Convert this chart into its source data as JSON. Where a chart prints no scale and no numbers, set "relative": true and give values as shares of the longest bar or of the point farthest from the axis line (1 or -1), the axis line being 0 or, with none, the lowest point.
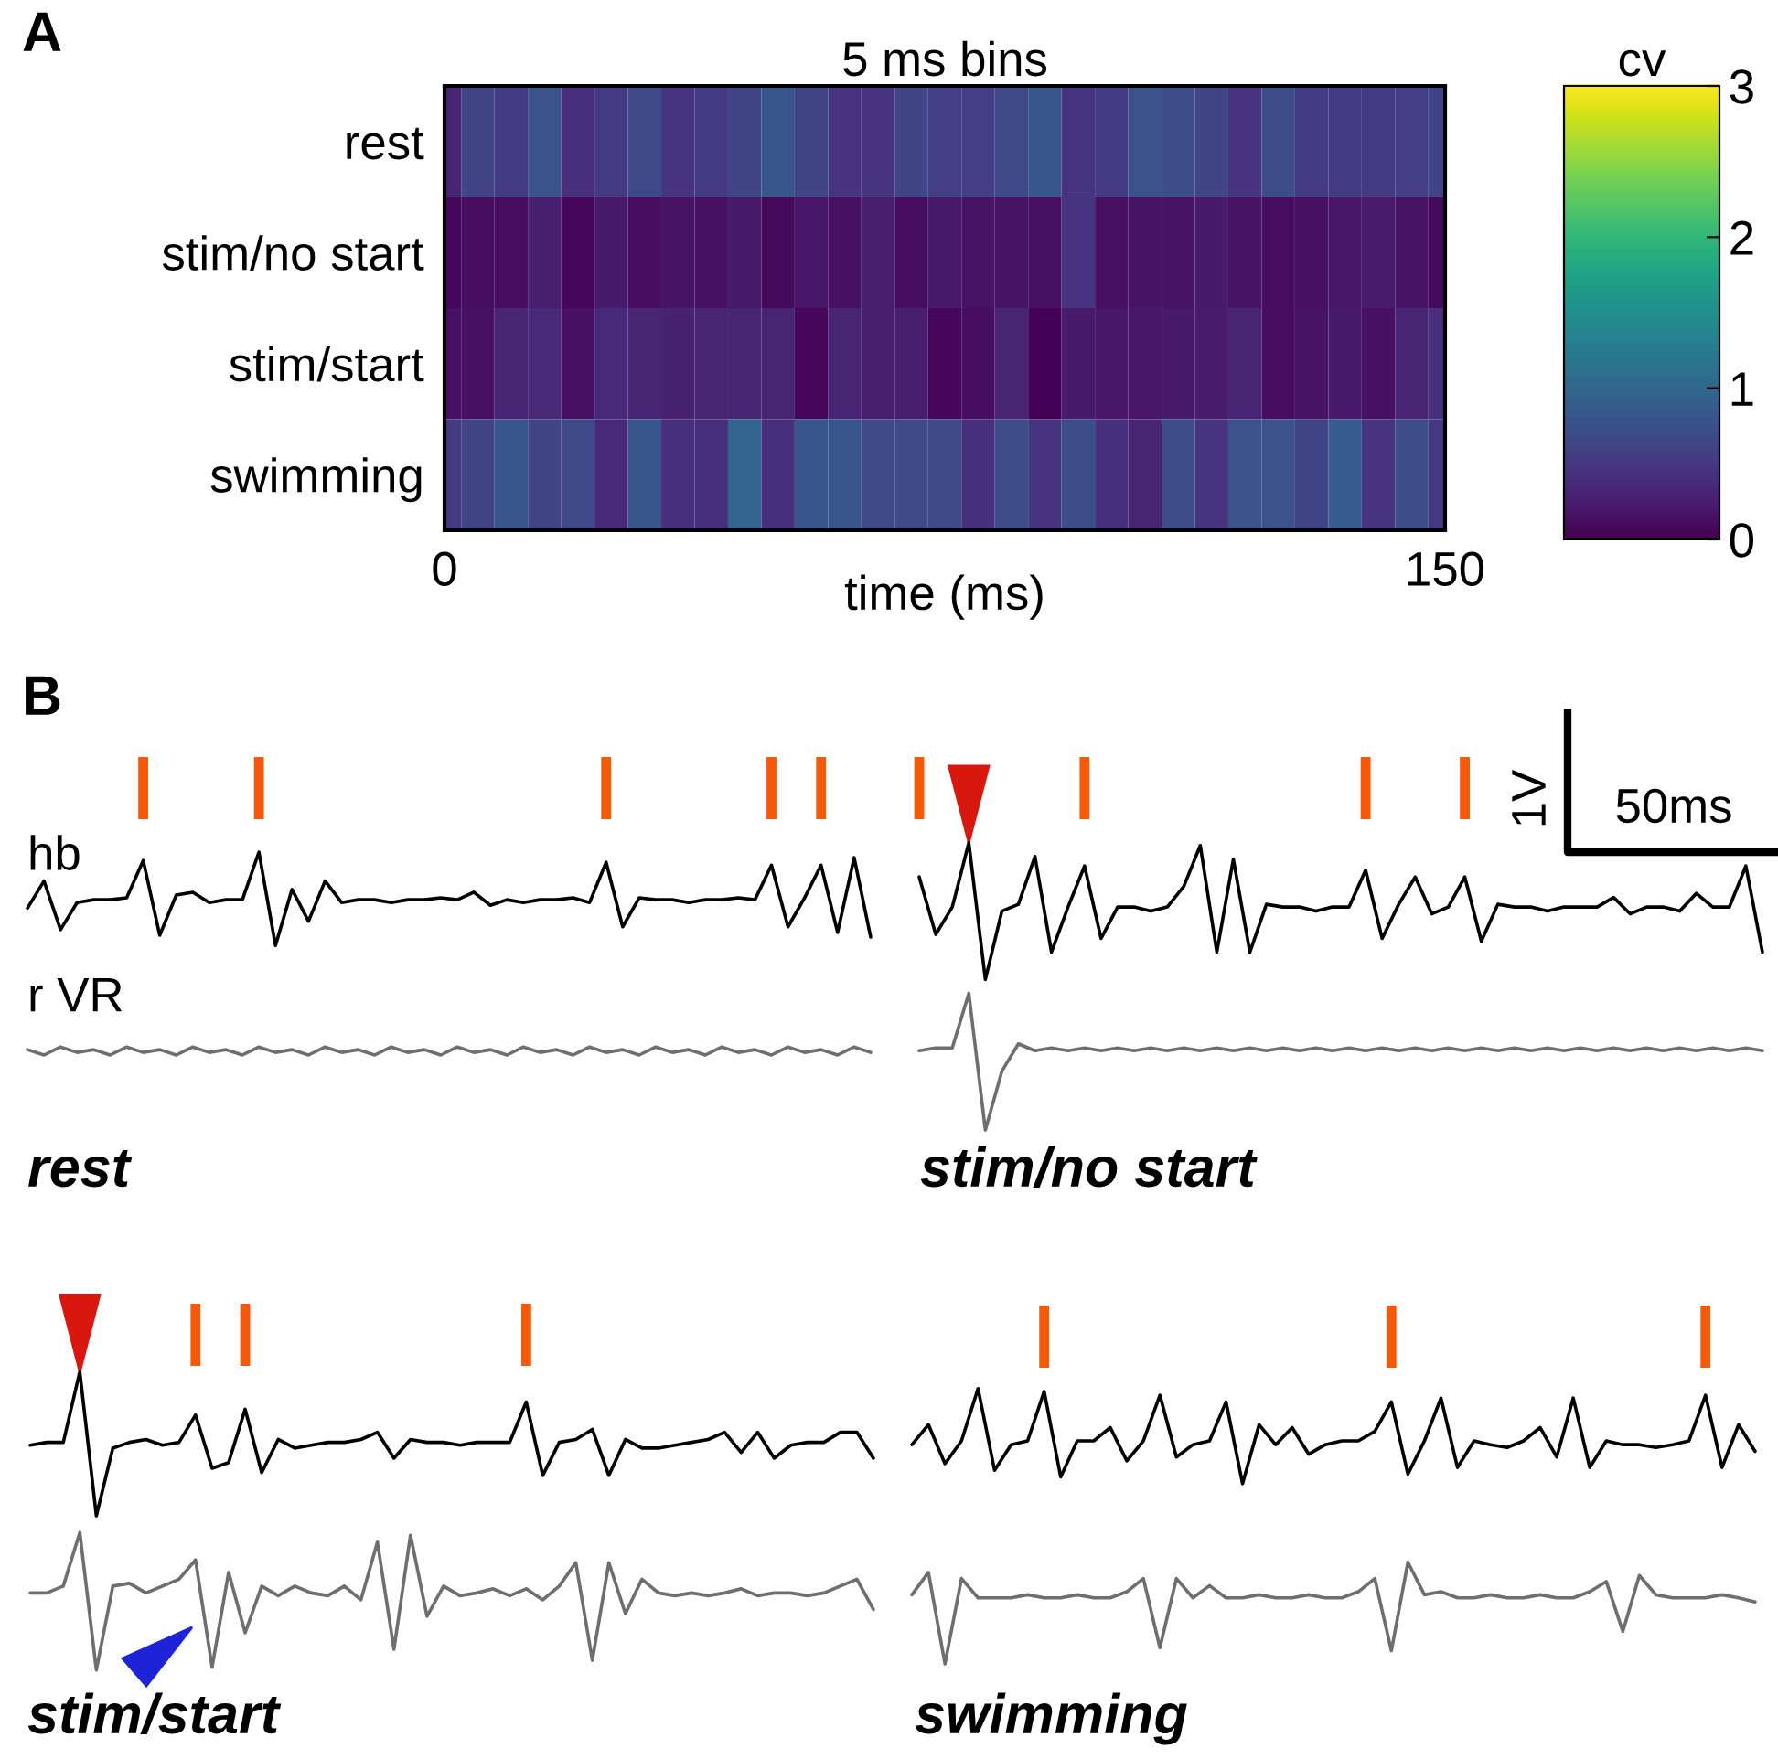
{
  "chart_data": [
    {
      "type": "heatmap",
      "title": "5 ms bins",
      "xlabel": "time (ms)",
      "clabel": "cv",
      "annotations": [
        "A"
      ],
      "x": [
        0,
        5,
        10,
        15,
        20,
        25,
        30,
        35,
        40,
        45,
        50,
        55,
        60,
        65,
        70,
        75,
        80,
        85,
        90,
        95,
        100,
        105,
        110,
        115,
        120,
        125,
        130,
        135,
        140,
        145,
        150
      ],
      "y_categories": [
        "rest",
        "stim/no start",
        "stim/start",
        "swimming"
      ],
      "cells": [
        [
          0.3,
          0.6,
          0.5,
          0.75,
          0.4,
          0.5,
          0.65,
          0.45,
          0.5,
          0.6,
          0.8,
          0.6,
          0.45,
          0.45,
          0.6,
          0.55,
          0.55,
          0.65,
          0.8,
          0.45,
          0.5,
          0.75,
          0.7,
          0.6,
          0.45,
          0.7,
          0.5,
          0.5,
          0.5,
          0.55,
          0.6
        ],
        [
          0.05,
          0.1,
          0.1,
          0.25,
          0.05,
          0.2,
          0.1,
          0.15,
          0.12,
          0.2,
          0.08,
          0.18,
          0.12,
          0.25,
          0.1,
          0.2,
          0.15,
          0.15,
          0.12,
          0.45,
          0.12,
          0.15,
          0.15,
          0.2,
          0.15,
          0.1,
          0.12,
          0.18,
          0.22,
          0.15,
          0.08
        ],
        [
          0.12,
          0.12,
          0.3,
          0.35,
          0.12,
          0.35,
          0.3,
          0.28,
          0.3,
          0.3,
          0.3,
          0.05,
          0.3,
          0.25,
          0.25,
          0.05,
          0.1,
          0.3,
          0.02,
          0.2,
          0.18,
          0.18,
          0.2,
          0.22,
          0.3,
          0.1,
          0.15,
          0.2,
          0.12,
          0.3,
          0.4
        ],
        [
          0.5,
          0.6,
          0.8,
          0.6,
          0.65,
          0.35,
          0.8,
          0.4,
          0.4,
          0.95,
          0.4,
          0.8,
          0.8,
          0.65,
          0.65,
          0.65,
          0.4,
          0.7,
          0.45,
          0.7,
          0.4,
          0.3,
          0.7,
          0.45,
          0.75,
          0.75,
          0.6,
          0.85,
          0.45,
          0.7,
          0.5
        ]
      ],
      "clim": [
        0,
        3
      ],
      "cticks": [
        0,
        1,
        2,
        3
      ],
      "xlim": [
        0,
        150
      ],
      "xticks": [
        0,
        150
      ]
    },
    {
      "type": "line",
      "relative": true,
      "annotations": [
        "B"
      ],
      "categories": [
        null,
        null,
        null,
        null,
        null,
        null,
        null,
        null,
        null,
        null,
        null,
        null,
        null,
        null,
        null,
        null,
        null,
        null,
        null,
        null,
        null,
        null,
        null,
        null,
        null,
        null,
        null,
        null,
        null,
        null,
        null,
        null,
        null,
        null,
        null,
        null,
        null,
        null,
        null,
        null,
        null,
        null,
        null,
        null,
        null,
        null,
        null,
        null,
        null,
        null,
        null,
        null
      ],
      "series": [
        {
          "name": "hb",
          "color": "#000000",
          "values": [
            0.4,
            0.69,
            0.17,
            0.46,
            0.49,
            0.49,
            0.51,
            0.91,
            0.11,
            0.54,
            0.57,
            0.46,
            0.49,
            0.49,
            1,
            0,
            0.6,
            0.26,
            0.69,
            0.46,
            0.49,
            0.49,
            0.46,
            0.49,
            0.49,
            0.51,
            0.49,
            0.57,
            0.43,
            0.49,
            0.46,
            0.49,
            0.49,
            0.51,
            0.46,
            0.89,
            0.2,
            0.51,
            0.49,
            0.49,
            0.46,
            0.49,
            0.49,
            0.51,
            0.49,
            0.86,
            0.2,
            0.51,
            0.86,
            0.14,
            0.94,
            0.09
          ]
        }
      ]
    },
    {
      "type": "line",
      "relative": true,
      "title": "rest",
      "categories": [
        null,
        null,
        null,
        null,
        null,
        null,
        null,
        null,
        null,
        null,
        null,
        null,
        null,
        null,
        null,
        null,
        null,
        null,
        null,
        null,
        null,
        null,
        null,
        null,
        null,
        null,
        null,
        null,
        null,
        null,
        null,
        null,
        null,
        null,
        null,
        null,
        null,
        null,
        null,
        null,
        null,
        null,
        null,
        null,
        null,
        null,
        null,
        null,
        null,
        null,
        null,
        null
      ],
      "series": [
        {
          "name": "r VR",
          "color": "#6e6e6e",
          "values": [
            0.67,
            0,
            1,
            0.33,
            0.67,
            0,
            1,
            0.33,
            0.67,
            0,
            1,
            0.33,
            0.67,
            0,
            1,
            0.33,
            0.67,
            0,
            1,
            0.33,
            0.67,
            0,
            1,
            0.33,
            0.67,
            0,
            1,
            0.33,
            0.67,
            0,
            1,
            0.33,
            0.67,
            0,
            1,
            0.33,
            0.67,
            0,
            1,
            0.33,
            0.67,
            0,
            1,
            0.33,
            0.67,
            0,
            1,
            0.33,
            0.67,
            0,
            1,
            0.33
          ]
        }
      ]
    },
    {
      "type": "line",
      "relative": true,
      "annotations": [
        "1V",
        "50ms"
      ],
      "categories": [
        null,
        null,
        null,
        null,
        null,
        null,
        null,
        null,
        null,
        null,
        null,
        null,
        null,
        null,
        null,
        null,
        null,
        null,
        null,
        null,
        null,
        null,
        null,
        null,
        null,
        null,
        null,
        null,
        null,
        null,
        null,
        null,
        null,
        null,
        null,
        null,
        null,
        null,
        null,
        null,
        null,
        null,
        null,
        null,
        null,
        null,
        null,
        null,
        null,
        null,
        null,
        null
      ],
      "series": [
        {
          "color": "#000000",
          "values": [
            0.75,
            0.33,
            0.53,
            1,
            0,
            0.5,
            0.55,
            0.9,
            0.2,
            0.53,
            0.83,
            0.3,
            0.53,
            0.53,
            0.5,
            0.53,
            0.68,
            0.98,
            0.2,
            0.88,
            0.2,
            0.55,
            0.53,
            0.53,
            0.5,
            0.53,
            0.53,
            0.8,
            0.3,
            0.55,
            0.75,
            0.48,
            0.53,
            0.75,
            0.28,
            0.55,
            0.53,
            0.53,
            0.5,
            0.53,
            0.53,
            0.53,
            0.6,
            0.48,
            0.53,
            0.53,
            0.5,
            0.63,
            0.53,
            0.53,
            0.83,
            0.2
          ]
        }
      ]
    },
    {
      "type": "line",
      "relative": true,
      "title": "stim/no start",
      "categories": [
        null,
        null,
        null,
        null,
        null,
        null,
        null,
        null,
        null,
        null,
        null,
        null,
        null,
        null,
        null,
        null,
        null,
        null,
        null,
        null,
        null,
        null,
        null,
        null,
        null,
        null,
        null,
        null,
        null,
        null,
        null,
        null,
        null,
        null,
        null,
        null,
        null,
        null,
        null,
        null,
        null,
        null,
        null,
        null,
        null,
        null,
        null,
        null,
        null,
        null,
        null,
        null
      ],
      "series": [
        {
          "color": "#6e6e6e",
          "values": [
            0.58,
            0.6,
            0.6,
            1,
            0,
            0.43,
            0.63,
            0.58,
            0.6,
            0.58,
            0.6,
            0.58,
            0.6,
            0.58,
            0.6,
            0.58,
            0.6,
            0.58,
            0.6,
            0.58,
            0.6,
            0.58,
            0.6,
            0.58,
            0.6,
            0.58,
            0.6,
            0.58,
            0.6,
            0.58,
            0.6,
            0.58,
            0.6,
            0.58,
            0.6,
            0.58,
            0.6,
            0.58,
            0.6,
            0.58,
            0.6,
            0.58,
            0.6,
            0.58,
            0.6,
            0.58,
            0.6,
            0.58,
            0.6,
            0.58,
            0.6,
            0.58
          ]
        }
      ]
    },
    {
      "type": "line",
      "relative": true,
      "categories": [
        null,
        null,
        null,
        null,
        null,
        null,
        null,
        null,
        null,
        null,
        null,
        null,
        null,
        null,
        null,
        null,
        null,
        null,
        null,
        null,
        null,
        null,
        null,
        null,
        null,
        null,
        null,
        null,
        null,
        null,
        null,
        null,
        null,
        null,
        null,
        null,
        null,
        null,
        null,
        null,
        null,
        null,
        null,
        null,
        null,
        null,
        null,
        null,
        null,
        null,
        null,
        null
      ],
      "series": [
        {
          "color": "#000000",
          "values": [
            0.49,
            0.51,
            0.51,
            1,
            0,
            0.47,
            0.51,
            0.53,
            0.49,
            0.51,
            0.7,
            0.33,
            0.37,
            0.74,
            0.3,
            0.53,
            0.47,
            0.49,
            0.51,
            0.51,
            0.53,
            0.58,
            0.4,
            0.53,
            0.51,
            0.51,
            0.49,
            0.51,
            0.51,
            0.51,
            0.79,
            0.28,
            0.51,
            0.53,
            0.6,
            0.28,
            0.53,
            0.47,
            0.47,
            0.49,
            0.51,
            0.53,
            0.58,
            0.44,
            0.58,
            0.4,
            0.49,
            0.51,
            0.51,
            0.58,
            0.58,
            0.4
          ]
        }
      ]
    },
    {
      "type": "line",
      "relative": true,
      "title": "stim/start",
      "categories": [
        null,
        null,
        null,
        null,
        null,
        null,
        null,
        null,
        null,
        null,
        null,
        null,
        null,
        null,
        null,
        null,
        null,
        null,
        null,
        null,
        null,
        null,
        null,
        null,
        null,
        null,
        null,
        null,
        null,
        null,
        null,
        null,
        null,
        null,
        null,
        null,
        null,
        null,
        null,
        null,
        null,
        null,
        null,
        null,
        null,
        null,
        null,
        null,
        null,
        null,
        null,
        null
      ],
      "series": [
        {
          "color": "#6e6e6e",
          "values": [
            0.56,
            0.56,
            0.61,
            1,
            0,
            0.61,
            0.63,
            0.56,
            0.61,
            0.66,
            0.8,
            0.02,
            0.71,
            0.27,
            0.61,
            0.54,
            0.61,
            0.56,
            0.54,
            0.61,
            0.51,
            0.93,
            0.15,
            0.98,
            0.39,
            0.61,
            0.54,
            0.56,
            0.59,
            0.54,
            0.59,
            0.51,
            0.61,
            0.78,
            0.07,
            0.78,
            0.41,
            0.66,
            0.56,
            0.54,
            0.56,
            0.54,
            0.56,
            0.59,
            0.54,
            0.56,
            0.56,
            0.54,
            0.56,
            0.61,
            0.66,
            0.44
          ]
        }
      ]
    },
    {
      "type": "line",
      "relative": true,
      "categories": [
        null,
        null,
        null,
        null,
        null,
        null,
        null,
        null,
        null,
        null,
        null,
        null,
        null,
        null,
        null,
        null,
        null,
        null,
        null,
        null,
        null,
        null,
        null,
        null,
        null,
        null,
        null,
        null,
        null,
        null,
        null,
        null,
        null,
        null,
        null,
        null,
        null,
        null,
        null,
        null,
        null,
        null,
        null,
        null,
        null,
        null,
        null,
        null,
        null,
        null,
        null,
        null
      ],
      "series": [
        {
          "color": "#000000",
          "values": [
            0.41,
            0.62,
            0.21,
            0.45,
            1,
            0.14,
            0.41,
            0.45,
            0.97,
            0.07,
            0.45,
            0.45,
            0.59,
            0.24,
            0.45,
            0.93,
            0.28,
            0.41,
            0.45,
            0.86,
            0,
            0.62,
            0.41,
            0.59,
            0.31,
            0.41,
            0.45,
            0.45,
            0.55,
            0.86,
            0.1,
            0.45,
            0.9,
            0.17,
            0.45,
            0.41,
            0.38,
            0.45,
            0.59,
            0.28,
            0.9,
            0.17,
            0.45,
            0.41,
            0.41,
            0.38,
            0.41,
            0.45,
            0.93,
            0.17,
            0.62,
            0.34
          ]
        }
      ]
    },
    {
      "type": "line",
      "relative": true,
      "title": "swimming",
      "categories": [
        null,
        null,
        null,
        null,
        null,
        null,
        null,
        null,
        null,
        null,
        null,
        null,
        null,
        null,
        null,
        null,
        null,
        null,
        null,
        null,
        null,
        null,
        null,
        null,
        null,
        null,
        null,
        null,
        null,
        null,
        null,
        null,
        null,
        null,
        null,
        null,
        null,
        null,
        null,
        null,
        null,
        null,
        null,
        null,
        null,
        null,
        null,
        null,
        null,
        null,
        null,
        null
      ],
      "series": [
        {
          "color": "#6e6e6e",
          "values": [
            0.68,
            0.9,
            0,
            0.84,
            0.65,
            0.65,
            0.65,
            0.68,
            0.65,
            0.65,
            0.68,
            0.65,
            0.65,
            0.71,
            0.84,
            0.16,
            0.84,
            0.65,
            0.77,
            0.65,
            0.65,
            0.68,
            0.65,
            0.65,
            0.68,
            0.65,
            0.65,
            0.71,
            0.84,
            0.13,
            1,
            0.68,
            0.71,
            0.65,
            0.65,
            0.68,
            0.65,
            0.65,
            0.68,
            0.65,
            0.65,
            0.71,
            0.81,
            0.32,
            0.87,
            0.68,
            0.65,
            0.65,
            0.65,
            0.68,
            0.65,
            0.61
          ]
        }
      ]
    }
  ]
}
